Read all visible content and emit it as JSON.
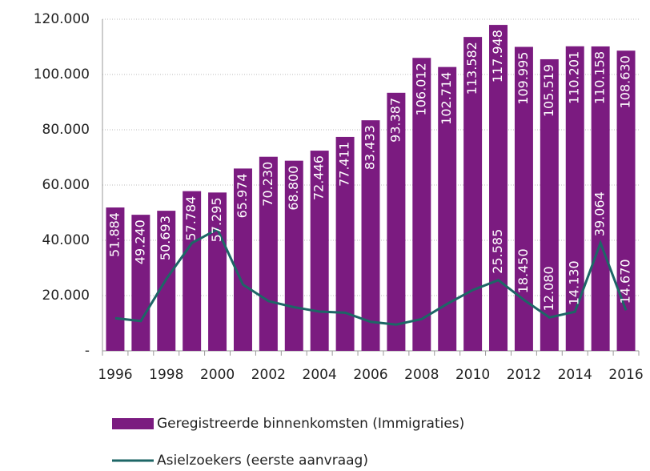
{
  "chart_data": {
    "type": "bar-line",
    "categories": [
      "1996",
      null,
      "1998",
      null,
      "2000",
      null,
      "2002",
      null,
      "2004",
      null,
      "2006",
      null,
      "2008",
      null,
      "2010",
      null,
      "2012",
      null,
      "2014",
      null,
      "2016"
    ],
    "series": [
      {
        "name": "Geregistreerde binnenkomsten (Immigraties)",
        "type": "bar",
        "color": "#7b1b80",
        "values": [
          51884,
          49240,
          50693,
          57784,
          57295,
          65974,
          70230,
          68800,
          72446,
          77411,
          83433,
          93387,
          106012,
          102714,
          113582,
          117948,
          109995,
          105519,
          110201,
          110158,
          108630
        ],
        "value_labels": [
          "51.884",
          "49.240",
          "50.693",
          "57.784",
          "57.295",
          "65.974",
          "70.230",
          "68.800",
          "72.446",
          "77.411",
          "83.433",
          "93.387",
          "106.012",
          "102.714",
          "113.582",
          "117.948",
          "109.995",
          "105.519",
          "110.201",
          "110.158",
          "108.630"
        ]
      },
      {
        "name": "Asielzoekers (eerste aanvraag)",
        "type": "line",
        "color": "#1d6666",
        "values": [
          11800,
          10800,
          26000,
          39000,
          44000,
          24000,
          18000,
          15800,
          14200,
          13800,
          10500,
          9500,
          11500,
          17000,
          22000,
          25585,
          18450,
          12080,
          14130,
          39064,
          14670
        ],
        "value_labels": [
          null,
          null,
          null,
          null,
          null,
          null,
          null,
          null,
          null,
          null,
          null,
          null,
          null,
          null,
          null,
          "25.585",
          "18.450",
          "12.080",
          "14.130",
          "39.064",
          "14.670"
        ]
      }
    ],
    "ylim": [
      0,
      120000
    ],
    "yticks": [
      {
        "value": 0,
        "label": "-"
      },
      {
        "value": 20000,
        "label": "20.000"
      },
      {
        "value": 40000,
        "label": "40.000"
      },
      {
        "value": 60000,
        "label": "60.000"
      },
      {
        "value": 80000,
        "label": "80.000"
      },
      {
        "value": 100000,
        "label": "100.000"
      },
      {
        "value": 120000,
        "label": "120.000"
      }
    ],
    "grid": true
  }
}
